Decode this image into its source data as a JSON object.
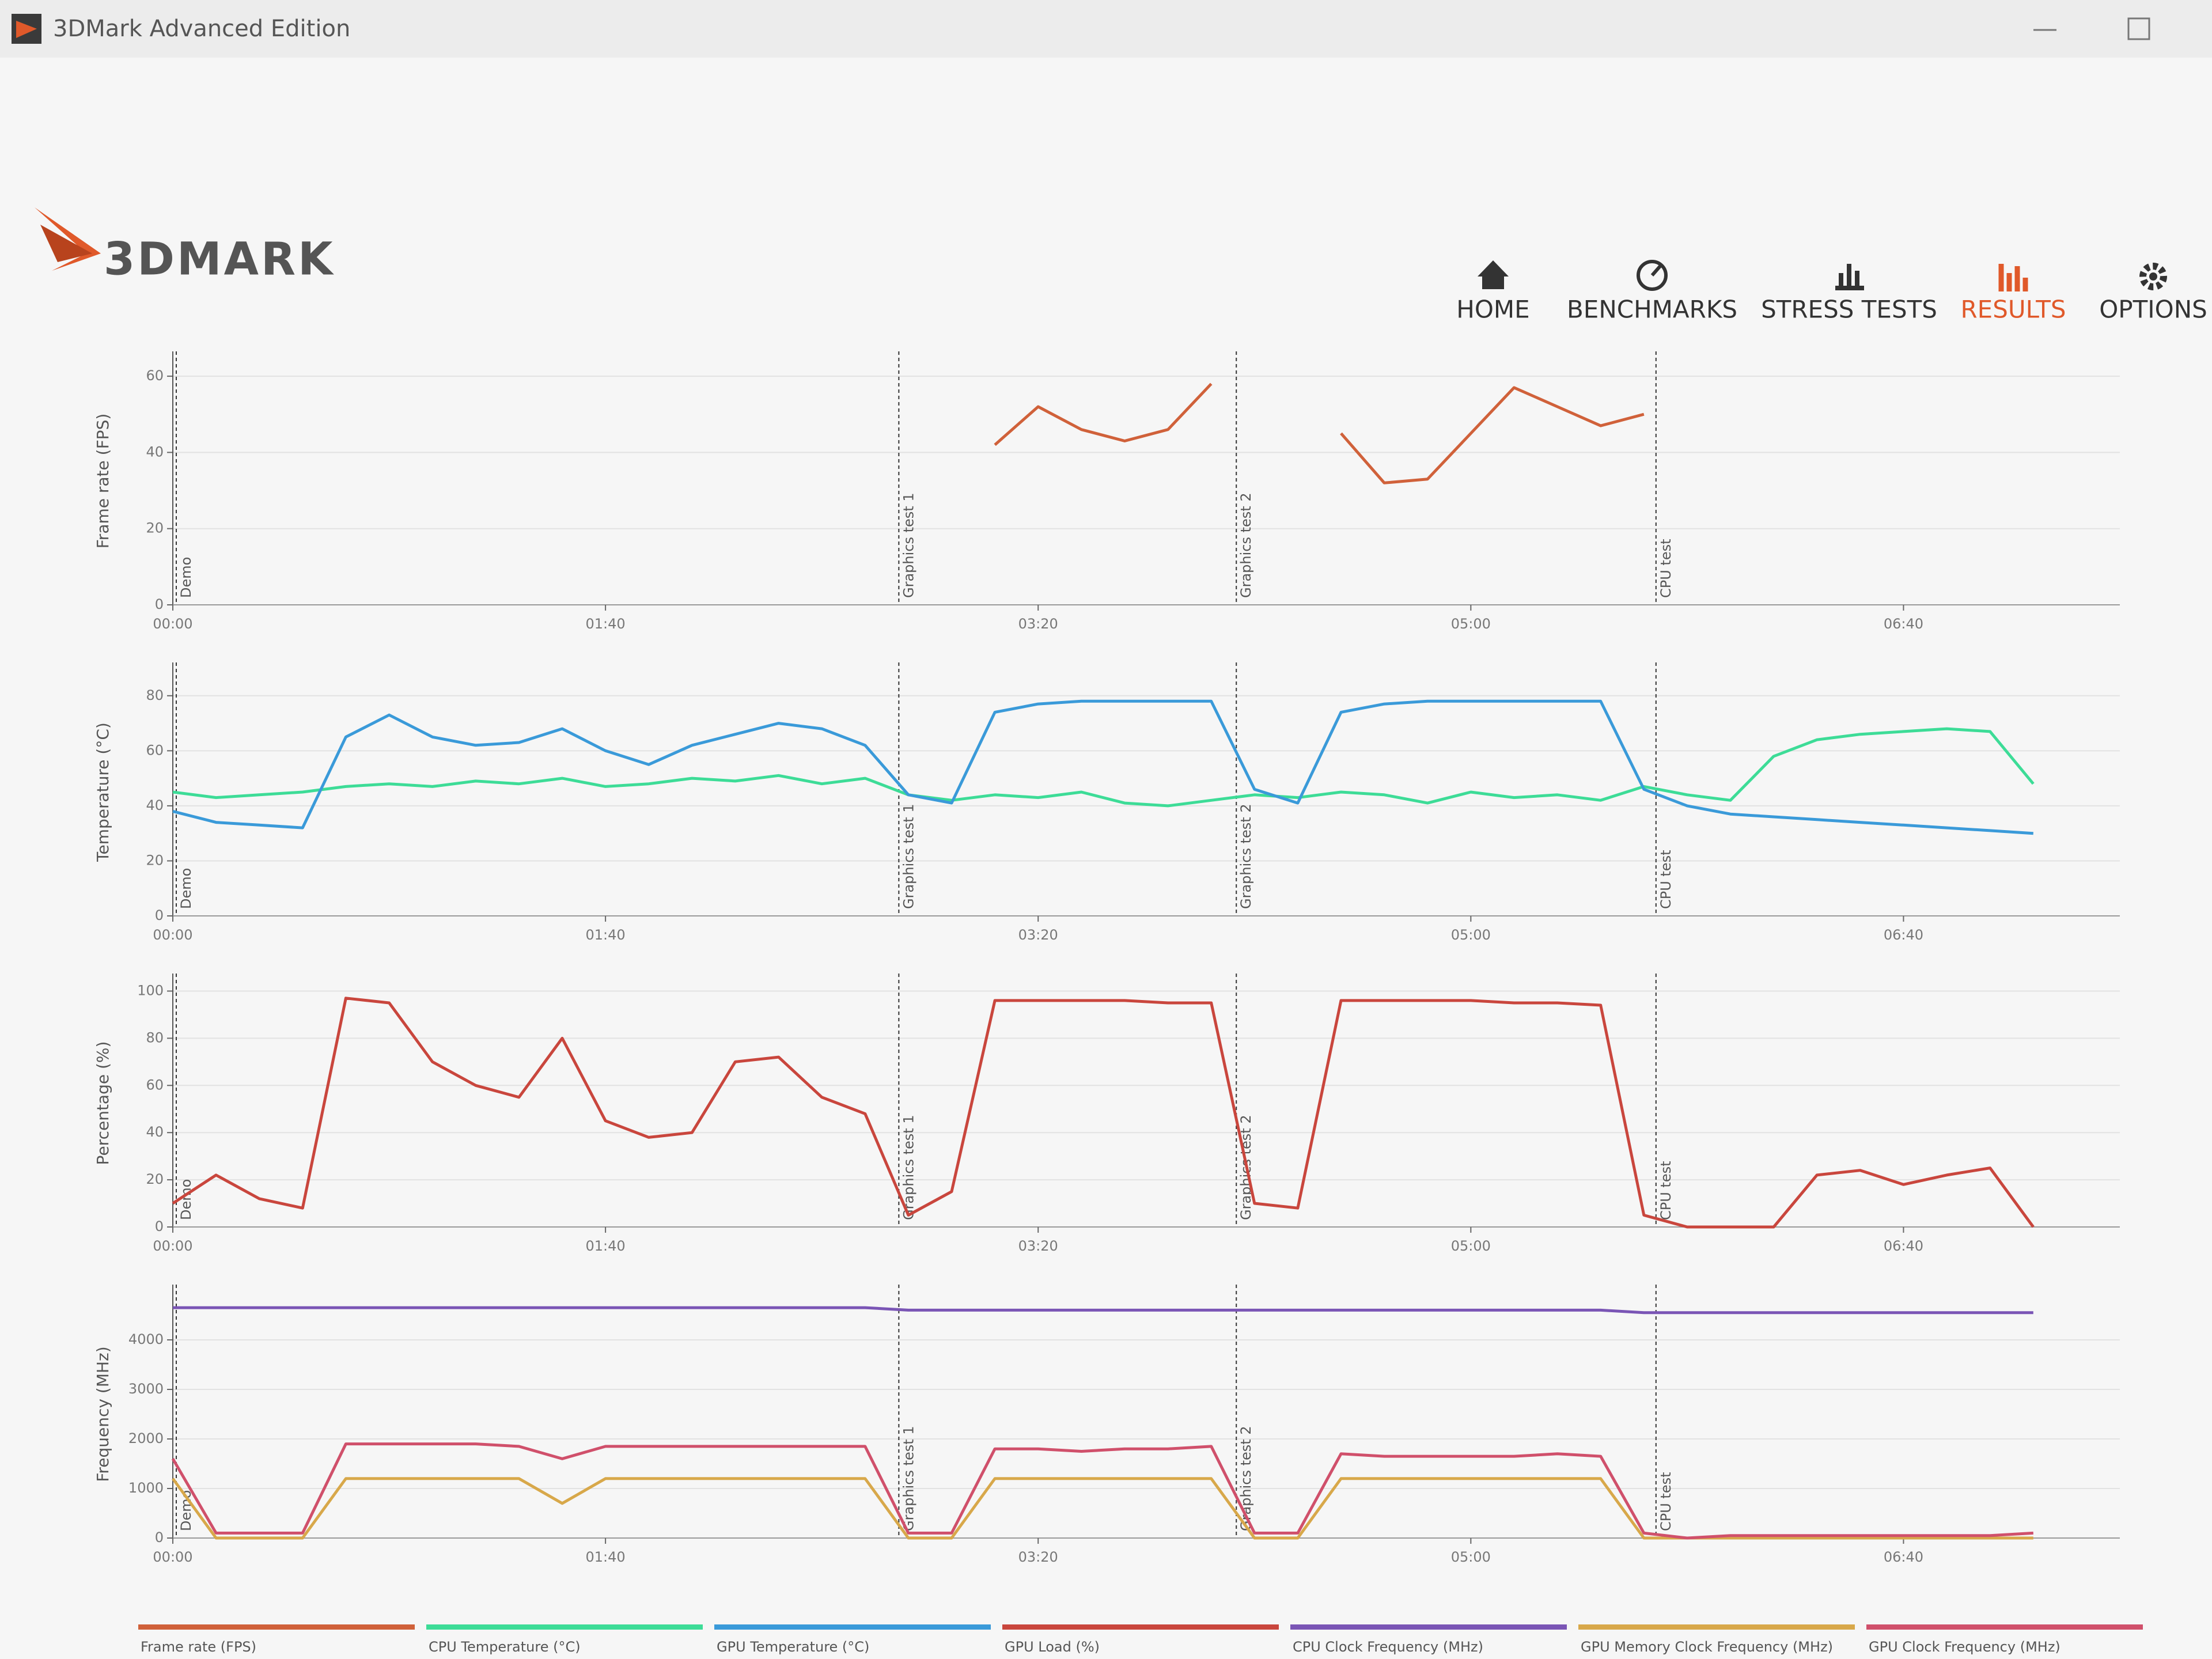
{
  "window_title": "3DMark Advanced Edition",
  "logo": "3DMARK",
  "nav": [
    {
      "label": "HOME",
      "active": false
    },
    {
      "label": "BENCHMARKS",
      "active": false
    },
    {
      "label": "STRESS TESTS",
      "active": false
    },
    {
      "label": "RESULTS",
      "active": true
    },
    {
      "label": "OPTIONS",
      "active": false
    }
  ],
  "markers": [
    {
      "label": "Demo",
      "x": 0
    },
    {
      "label": "Graphics test 1",
      "x": 167
    },
    {
      "label": "Graphics test 2",
      "x": 245
    },
    {
      "label": "CPU test",
      "x": 342
    }
  ],
  "chart_data": [
    {
      "type": "line",
      "y_label": "Frame rate (FPS)",
      "x": [
        0,
        10,
        20,
        30,
        40,
        50,
        60,
        70,
        80,
        90,
        100,
        110,
        120,
        130,
        140,
        150,
        160,
        170,
        180,
        190,
        200,
        210,
        220,
        230,
        240,
        250,
        260,
        270,
        280,
        290,
        300,
        310,
        320,
        330,
        340,
        350,
        360,
        370,
        380,
        390,
        400,
        410,
        420,
        430
      ],
      "xlim": [
        0,
        450
      ],
      "xticks": [
        {
          "value": 0,
          "label": "00:00"
        },
        {
          "value": 100,
          "label": "01:40"
        },
        {
          "value": 200,
          "label": "03:20"
        },
        {
          "value": 300,
          "label": "05:00"
        },
        {
          "value": 400,
          "label": "06:40"
        }
      ],
      "ylim": [
        0,
        65
      ],
      "yticks": [
        0,
        20,
        40,
        60
      ],
      "grid": true,
      "series": [
        {
          "name": "Frame rate (FPS)",
          "color": "#d0613a",
          "values": [
            null,
            null,
            null,
            null,
            null,
            null,
            null,
            null,
            null,
            null,
            null,
            null,
            null,
            null,
            null,
            null,
            null,
            null,
            null,
            42,
            52,
            46,
            43,
            46,
            58,
            null,
            null,
            45,
            32,
            33,
            45,
            57,
            52,
            47,
            50,
            null,
            null,
            null,
            null,
            null,
            null,
            null,
            null,
            null
          ]
        }
      ]
    },
    {
      "type": "line",
      "y_label": "Temperature (°C)",
      "x": [
        0,
        10,
        20,
        30,
        40,
        50,
        60,
        70,
        80,
        90,
        100,
        110,
        120,
        130,
        140,
        150,
        160,
        170,
        180,
        190,
        200,
        210,
        220,
        230,
        240,
        250,
        260,
        270,
        280,
        290,
        300,
        310,
        320,
        330,
        340,
        350,
        360,
        370,
        380,
        390,
        400,
        410,
        420,
        430
      ],
      "xlim": [
        0,
        450
      ],
      "xticks": [
        {
          "value": 0,
          "label": "00:00"
        },
        {
          "value": 100,
          "label": "01:40"
        },
        {
          "value": 200,
          "label": "03:20"
        },
        {
          "value": 300,
          "label": "05:00"
        },
        {
          "value": 400,
          "label": "06:40"
        }
      ],
      "ylim": [
        0,
        90
      ],
      "yticks": [
        0,
        20,
        40,
        60,
        80
      ],
      "grid": true,
      "series": [
        {
          "name": "CPU Temperature (°C)",
          "color": "#3ddc97",
          "values": [
            45,
            43,
            44,
            45,
            47,
            48,
            47,
            49,
            48,
            50,
            47,
            48,
            50,
            49,
            51,
            48,
            50,
            44,
            42,
            44,
            43,
            45,
            41,
            40,
            42,
            44,
            43,
            45,
            44,
            41,
            45,
            43,
            44,
            42,
            47,
            44,
            42,
            58,
            64,
            66,
            67,
            68,
            67,
            48
          ]
        },
        {
          "name": "GPU Temperature (°C)",
          "color": "#3a9ad9",
          "values": [
            38,
            34,
            33,
            32,
            65,
            73,
            65,
            62,
            63,
            68,
            60,
            55,
            62,
            66,
            70,
            68,
            62,
            44,
            41,
            74,
            77,
            78,
            78,
            78,
            78,
            46,
            41,
            74,
            77,
            78,
            78,
            78,
            78,
            78,
            46,
            40,
            37,
            36,
            35,
            34,
            33,
            32,
            31,
            30
          ]
        }
      ]
    },
    {
      "type": "line",
      "y_label": "Percentage (%)",
      "x": [
        0,
        10,
        20,
        30,
        40,
        50,
        60,
        70,
        80,
        90,
        100,
        110,
        120,
        130,
        140,
        150,
        160,
        170,
        180,
        190,
        200,
        210,
        220,
        230,
        240,
        250,
        260,
        270,
        280,
        290,
        300,
        310,
        320,
        330,
        340,
        350,
        360,
        370,
        380,
        390,
        400,
        410,
        420,
        430
      ],
      "xlim": [
        0,
        450
      ],
      "xticks": [
        {
          "value": 0,
          "label": "00:00"
        },
        {
          "value": 100,
          "label": "01:40"
        },
        {
          "value": 200,
          "label": "03:20"
        },
        {
          "value": 300,
          "label": "05:00"
        },
        {
          "value": 400,
          "label": "06:40"
        }
      ],
      "ylim": [
        0,
        105
      ],
      "yticks": [
        0,
        20,
        40,
        60,
        80,
        100
      ],
      "grid": true,
      "series": [
        {
          "name": "GPU Load (%)",
          "color": "#c9463d",
          "values": [
            10,
            22,
            12,
            8,
            97,
            95,
            70,
            60,
            55,
            80,
            45,
            38,
            40,
            70,
            72,
            55,
            48,
            5,
            15,
            96,
            96,
            96,
            96,
            95,
            95,
            10,
            8,
            96,
            96,
            96,
            96,
            95,
            95,
            94,
            5,
            0,
            0,
            0,
            22,
            24,
            18,
            22,
            25,
            0
          ]
        }
      ]
    },
    {
      "type": "line",
      "y_label": "Frequency (MHz)",
      "x": [
        0,
        10,
        20,
        30,
        40,
        50,
        60,
        70,
        80,
        90,
        100,
        110,
        120,
        130,
        140,
        150,
        160,
        170,
        180,
        190,
        200,
        210,
        220,
        230,
        240,
        250,
        260,
        270,
        280,
        290,
        300,
        310,
        320,
        330,
        340,
        350,
        360,
        370,
        380,
        390,
        400,
        410,
        420,
        430
      ],
      "xlim": [
        0,
        450
      ],
      "xticks": [
        {
          "value": 0,
          "label": "00:00"
        },
        {
          "value": 100,
          "label": "01:40"
        },
        {
          "value": 200,
          "label": "03:20"
        },
        {
          "value": 300,
          "label": "05:00"
        },
        {
          "value": 400,
          "label": "06:40"
        }
      ],
      "ylim": [
        0,
        5000
      ],
      "yticks": [
        0,
        1000,
        2000,
        3000,
        4000
      ],
      "grid": true,
      "series": [
        {
          "name": "CPU Clock Frequency (MHz)",
          "color": "#7a55b5",
          "values": [
            4650,
            4650,
            4650,
            4650,
            4650,
            4650,
            4650,
            4650,
            4650,
            4650,
            4650,
            4650,
            4650,
            4650,
            4650,
            4650,
            4650,
            4600,
            4600,
            4600,
            4600,
            4600,
            4600,
            4600,
            4600,
            4600,
            4600,
            4600,
            4600,
            4600,
            4600,
            4600,
            4600,
            4600,
            4550,
            4550,
            4550,
            4550,
            4550,
            4550,
            4550,
            4550,
            4550,
            4550
          ]
        },
        {
          "name": "GPU Memory Clock Frequency (MHz)",
          "color": "#d8a84a",
          "values": [
            1200,
            0,
            0,
            0,
            1200,
            1200,
            1200,
            1200,
            1200,
            700,
            1200,
            1200,
            1200,
            1200,
            1200,
            1200,
            1200,
            0,
            0,
            1200,
            1200,
            1200,
            1200,
            1200,
            1200,
            0,
            0,
            1200,
            1200,
            1200,
            1200,
            1200,
            1200,
            1200,
            0,
            0,
            0,
            0,
            0,
            0,
            0,
            0,
            0,
            0
          ]
        },
        {
          "name": "GPU Clock Frequency (MHz)",
          "color": "#d0506b",
          "values": [
            1600,
            100,
            100,
            100,
            1900,
            1900,
            1900,
            1900,
            1850,
            1600,
            1850,
            1850,
            1850,
            1850,
            1850,
            1850,
            1850,
            100,
            100,
            1800,
            1800,
            1750,
            1800,
            1800,
            1850,
            100,
            100,
            1700,
            1650,
            1650,
            1650,
            1650,
            1700,
            1650,
            100,
            0,
            50,
            50,
            50,
            50,
            50,
            50,
            50,
            100
          ]
        }
      ]
    }
  ]
}
